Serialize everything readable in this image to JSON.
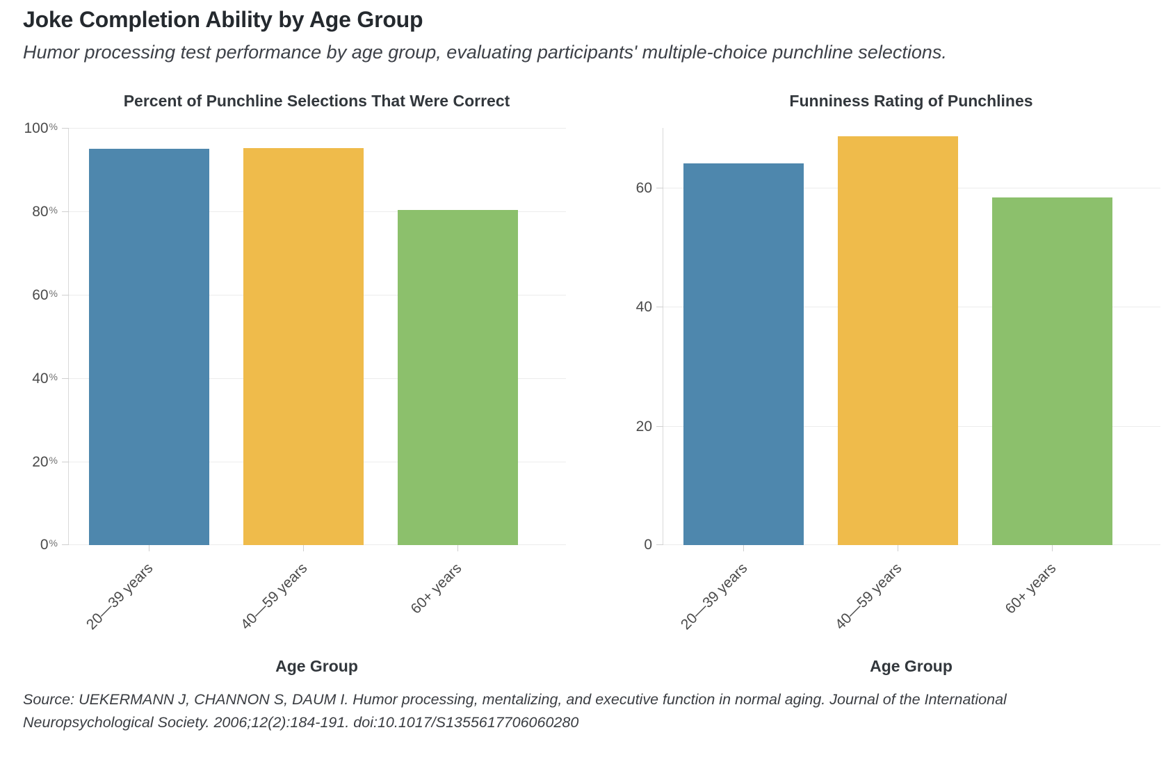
{
  "header": {
    "title": "Joke Completion Ability by Age Group",
    "subtitle": "Humor processing test performance by age group, evaluating participants' multiple-choice punchline selections."
  },
  "colors": {
    "bar_blue": "#4E87AD",
    "bar_yellow": "#EFBB4B",
    "bar_green": "#8CC06C",
    "gridline": "#ECECEC",
    "axis_line": "#D9D9D9",
    "tick_text": "#4A4A4A"
  },
  "chart_data": [
    {
      "type": "bar",
      "title": "Percent of Punchline Selections That Were Correct",
      "xlabel": "Age Group",
      "ylabel": "",
      "categories": [
        "20—39 years",
        "40—59 years",
        "60+ years"
      ],
      "values": [
        95,
        95.2,
        80.3
      ],
      "ylim": [
        0,
        100
      ],
      "yticks": [
        0,
        20,
        40,
        60,
        80,
        100
      ],
      "ytick_suffix": "%",
      "bar_colors": [
        "#4E87AD",
        "#EFBB4B",
        "#8CC06C"
      ],
      "grid": true,
      "legend_position": "none"
    },
    {
      "type": "bar",
      "title": "Funniness Rating of Punchlines",
      "xlabel": "Age Group",
      "ylabel": "",
      "categories": [
        "20—39 years",
        "40—59 years",
        "60+ years"
      ],
      "values": [
        64,
        68.6,
        58.3
      ],
      "ylim": [
        0,
        70
      ],
      "yticks": [
        0,
        20,
        40,
        60
      ],
      "ytick_suffix": "",
      "bar_colors": [
        "#4E87AD",
        "#EFBB4B",
        "#8CC06C"
      ],
      "grid": true,
      "legend_position": "none"
    }
  ],
  "footer": {
    "source_line1": "Source: UEKERMANN J, CHANNON S, DAUM I. Humor processing, mentalizing, and executive function in normal aging. Journal of the International",
    "source_line2": "Neuropsychological Society. 2006;12(2):184-191. doi:10.1017/S1355617706060280"
  }
}
